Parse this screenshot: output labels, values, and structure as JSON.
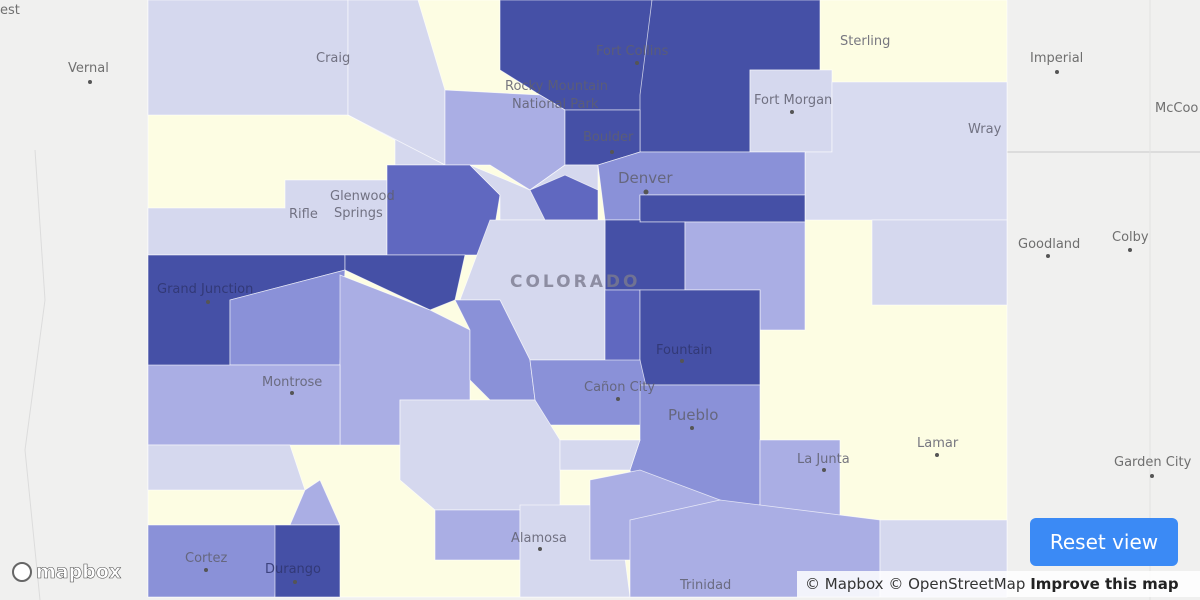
{
  "map": {
    "places": [
      "est",
      "Vernal",
      "Craig",
      "Rocky Mountain",
      "National Park",
      "Fort Collins",
      "Sterling",
      "Imperial",
      "McCoo",
      "Fort Morgan",
      "Wray",
      "Boulder",
      "Denver",
      "Glenwood",
      "Springs",
      "Rifle",
      "Goodland",
      "Colby",
      "Grand Junction",
      "Fountain",
      "Montrose",
      "Cañon City",
      "Pueblo",
      "Lamar",
      "La Junta",
      "Garden City",
      "Alamosa",
      "Cortez",
      "Durango",
      "Trinidad"
    ],
    "state_label": "COLORADO"
  },
  "logo": "mapbox",
  "attribution": {
    "mapbox": "© Mapbox",
    "osm": "© OpenStreetMap",
    "improve": "Improve this map"
  },
  "button": "Reset view"
}
